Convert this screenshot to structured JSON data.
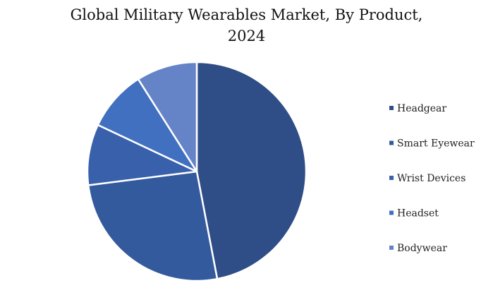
{
  "chart_data": {
    "type": "pie",
    "title_lines": [
      "Global Military Wearables Market, By Product,",
      "2024"
    ],
    "categories": [
      "Headgear",
      "Smart Eyewear",
      "Wrist Devices",
      "Headset",
      "Bodywear"
    ],
    "values": [
      47,
      26,
      9,
      9,
      9
    ],
    "colors": [
      "#2f4d87",
      "#345a9e",
      "#3860ab",
      "#4170c0",
      "#6584c8"
    ],
    "legend_position": "right"
  }
}
